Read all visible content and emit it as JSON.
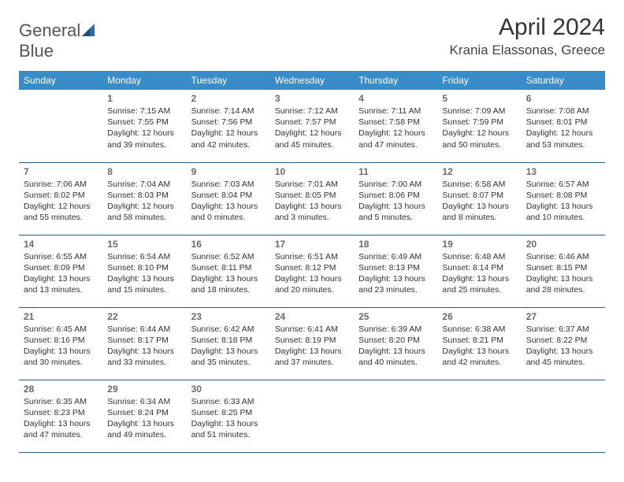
{
  "logo": {
    "text1": "General",
    "text2": "Blue"
  },
  "title": "April 2024",
  "location": "Krania Elassonas, Greece",
  "weekdays": [
    "Sunday",
    "Monday",
    "Tuesday",
    "Wednesday",
    "Thursday",
    "Friday",
    "Saturday"
  ],
  "colors": {
    "header_bg": "#3a8cc9",
    "header_fg": "#ffffff",
    "row_border": "#2b5a7a",
    "logo_accent": "#3178b8"
  },
  "weeks": [
    [
      null,
      {
        "n": "1",
        "sr": "Sunrise: 7:15 AM",
        "ss": "Sunset: 7:55 PM",
        "d1": "Daylight: 12 hours",
        "d2": "and 39 minutes."
      },
      {
        "n": "2",
        "sr": "Sunrise: 7:14 AM",
        "ss": "Sunset: 7:56 PM",
        "d1": "Daylight: 12 hours",
        "d2": "and 42 minutes."
      },
      {
        "n": "3",
        "sr": "Sunrise: 7:12 AM",
        "ss": "Sunset: 7:57 PM",
        "d1": "Daylight: 12 hours",
        "d2": "and 45 minutes."
      },
      {
        "n": "4",
        "sr": "Sunrise: 7:11 AM",
        "ss": "Sunset: 7:58 PM",
        "d1": "Daylight: 12 hours",
        "d2": "and 47 minutes."
      },
      {
        "n": "5",
        "sr": "Sunrise: 7:09 AM",
        "ss": "Sunset: 7:59 PM",
        "d1": "Daylight: 12 hours",
        "d2": "and 50 minutes."
      },
      {
        "n": "6",
        "sr": "Sunrise: 7:08 AM",
        "ss": "Sunset: 8:01 PM",
        "d1": "Daylight: 12 hours",
        "d2": "and 53 minutes."
      }
    ],
    [
      {
        "n": "7",
        "sr": "Sunrise: 7:06 AM",
        "ss": "Sunset: 8:02 PM",
        "d1": "Daylight: 12 hours",
        "d2": "and 55 minutes."
      },
      {
        "n": "8",
        "sr": "Sunrise: 7:04 AM",
        "ss": "Sunset: 8:03 PM",
        "d1": "Daylight: 12 hours",
        "d2": "and 58 minutes."
      },
      {
        "n": "9",
        "sr": "Sunrise: 7:03 AM",
        "ss": "Sunset: 8:04 PM",
        "d1": "Daylight: 13 hours",
        "d2": "and 0 minutes."
      },
      {
        "n": "10",
        "sr": "Sunrise: 7:01 AM",
        "ss": "Sunset: 8:05 PM",
        "d1": "Daylight: 13 hours",
        "d2": "and 3 minutes."
      },
      {
        "n": "11",
        "sr": "Sunrise: 7:00 AM",
        "ss": "Sunset: 8:06 PM",
        "d1": "Daylight: 13 hours",
        "d2": "and 5 minutes."
      },
      {
        "n": "12",
        "sr": "Sunrise: 6:58 AM",
        "ss": "Sunset: 8:07 PM",
        "d1": "Daylight: 13 hours",
        "d2": "and 8 minutes."
      },
      {
        "n": "13",
        "sr": "Sunrise: 6:57 AM",
        "ss": "Sunset: 8:08 PM",
        "d1": "Daylight: 13 hours",
        "d2": "and 10 minutes."
      }
    ],
    [
      {
        "n": "14",
        "sr": "Sunrise: 6:55 AM",
        "ss": "Sunset: 8:09 PM",
        "d1": "Daylight: 13 hours",
        "d2": "and 13 minutes."
      },
      {
        "n": "15",
        "sr": "Sunrise: 6:54 AM",
        "ss": "Sunset: 8:10 PM",
        "d1": "Daylight: 13 hours",
        "d2": "and 15 minutes."
      },
      {
        "n": "16",
        "sr": "Sunrise: 6:52 AM",
        "ss": "Sunset: 8:11 PM",
        "d1": "Daylight: 13 hours",
        "d2": "and 18 minutes."
      },
      {
        "n": "17",
        "sr": "Sunrise: 6:51 AM",
        "ss": "Sunset: 8:12 PM",
        "d1": "Daylight: 13 hours",
        "d2": "and 20 minutes."
      },
      {
        "n": "18",
        "sr": "Sunrise: 6:49 AM",
        "ss": "Sunset: 8:13 PM",
        "d1": "Daylight: 13 hours",
        "d2": "and 23 minutes."
      },
      {
        "n": "19",
        "sr": "Sunrise: 6:48 AM",
        "ss": "Sunset: 8:14 PM",
        "d1": "Daylight: 13 hours",
        "d2": "and 25 minutes."
      },
      {
        "n": "20",
        "sr": "Sunrise: 6:46 AM",
        "ss": "Sunset: 8:15 PM",
        "d1": "Daylight: 13 hours",
        "d2": "and 28 minutes."
      }
    ],
    [
      {
        "n": "21",
        "sr": "Sunrise: 6:45 AM",
        "ss": "Sunset: 8:16 PM",
        "d1": "Daylight: 13 hours",
        "d2": "and 30 minutes."
      },
      {
        "n": "22",
        "sr": "Sunrise: 6:44 AM",
        "ss": "Sunset: 8:17 PM",
        "d1": "Daylight: 13 hours",
        "d2": "and 33 minutes."
      },
      {
        "n": "23",
        "sr": "Sunrise: 6:42 AM",
        "ss": "Sunset: 8:18 PM",
        "d1": "Daylight: 13 hours",
        "d2": "and 35 minutes."
      },
      {
        "n": "24",
        "sr": "Sunrise: 6:41 AM",
        "ss": "Sunset: 8:19 PM",
        "d1": "Daylight: 13 hours",
        "d2": "and 37 minutes."
      },
      {
        "n": "25",
        "sr": "Sunrise: 6:39 AM",
        "ss": "Sunset: 8:20 PM",
        "d1": "Daylight: 13 hours",
        "d2": "and 40 minutes."
      },
      {
        "n": "26",
        "sr": "Sunrise: 6:38 AM",
        "ss": "Sunset: 8:21 PM",
        "d1": "Daylight: 13 hours",
        "d2": "and 42 minutes."
      },
      {
        "n": "27",
        "sr": "Sunrise: 6:37 AM",
        "ss": "Sunset: 8:22 PM",
        "d1": "Daylight: 13 hours",
        "d2": "and 45 minutes."
      }
    ],
    [
      {
        "n": "28",
        "sr": "Sunrise: 6:35 AM",
        "ss": "Sunset: 8:23 PM",
        "d1": "Daylight: 13 hours",
        "d2": "and 47 minutes."
      },
      {
        "n": "29",
        "sr": "Sunrise: 6:34 AM",
        "ss": "Sunset: 8:24 PM",
        "d1": "Daylight: 13 hours",
        "d2": "and 49 minutes."
      },
      {
        "n": "30",
        "sr": "Sunrise: 6:33 AM",
        "ss": "Sunset: 8:25 PM",
        "d1": "Daylight: 13 hours",
        "d2": "and 51 minutes."
      },
      null,
      null,
      null,
      null
    ]
  ]
}
